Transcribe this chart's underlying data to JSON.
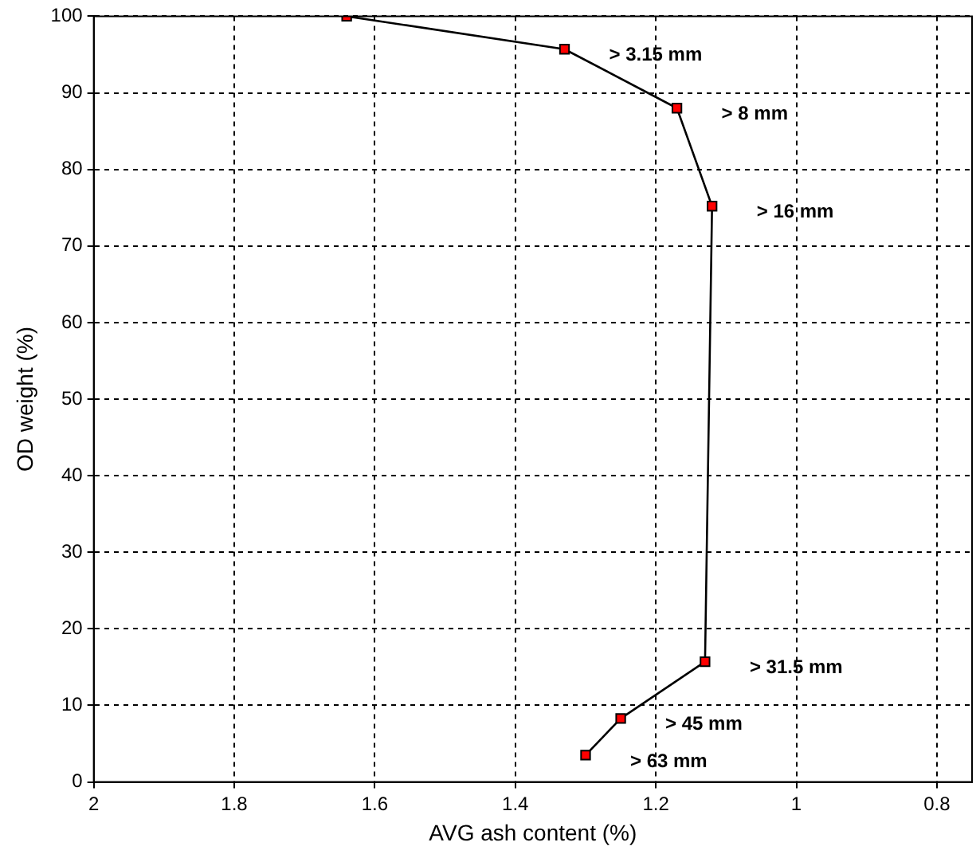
{
  "chart_data": {
    "type": "line",
    "xlabel": "AVG ash content (%)",
    "ylabel": "OD weight (%)",
    "x": [
      1.64,
      1.33,
      1.17,
      1.12,
      1.13,
      1.25,
      1.3
    ],
    "series": [
      {
        "color": "#000000",
        "values": [
          100,
          95.7,
          88,
          75.2,
          15.7,
          8.3,
          3.5
        ]
      }
    ],
    "xlim": [
      2,
      0.75
    ],
    "xticks": [
      2,
      1.8,
      1.6,
      1.4,
      1.2,
      1,
      0.8
    ],
    "ylim": [
      0,
      100
    ],
    "yticks": [
      0,
      10,
      20,
      30,
      40,
      50,
      60,
      70,
      80,
      90,
      100
    ],
    "grid": true,
    "legend": false,
    "marker": "square",
    "line_style": "solid",
    "annotations": [
      {
        "text": "> 3.15 mm",
        "x": 1.33,
        "y": 95.7
      },
      {
        "text": "> 8 mm",
        "x": 1.17,
        "y": 88
      },
      {
        "text": "> 16 mm",
        "x": 1.12,
        "y": 75.2
      },
      {
        "text": "> 31.5 mm",
        "x": 1.13,
        "y": 15.7
      },
      {
        "text": "> 45 mm",
        "x": 1.25,
        "y": 8.3
      },
      {
        "text": "> 63 mm",
        "x": 1.3,
        "y": 3.5
      }
    ]
  }
}
